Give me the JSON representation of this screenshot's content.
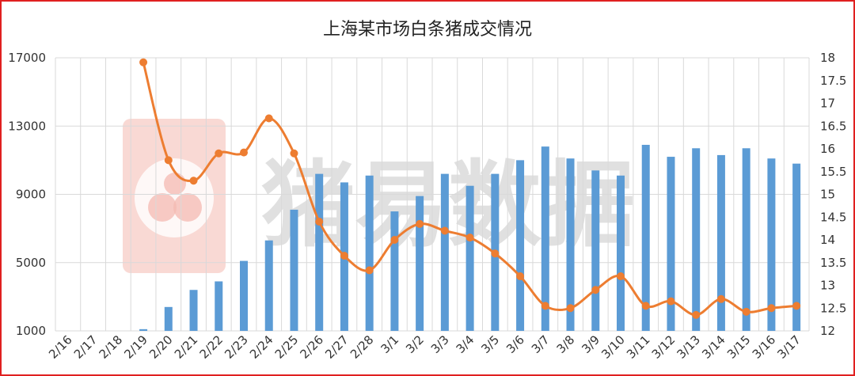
{
  "chart_data": {
    "type": "bar+line",
    "title": "上海某市场白条猪成交情况",
    "categories": [
      "2/16",
      "2/17",
      "2/18",
      "2/19",
      "2/20",
      "2/21",
      "2/22",
      "2/23",
      "2/24",
      "2/25",
      "2/26",
      "2/27",
      "2/28",
      "3/1",
      "3/2",
      "3/3",
      "3/4",
      "3/5",
      "3/6",
      "3/7",
      "3/8",
      "3/9",
      "3/10",
      "3/11",
      "3/12",
      "3/13",
      "3/14",
      "3/15",
      "3/16",
      "3/17"
    ],
    "left_axis": {
      "ticks": [
        1000,
        5000,
        9000,
        13000,
        17000
      ],
      "range": [
        1000,
        17000
      ]
    },
    "right_axis": {
      "ticks": [
        12,
        12.5,
        13,
        13.5,
        14,
        14.5,
        15,
        15.5,
        16,
        16.5,
        17,
        17.5,
        18
      ],
      "range": [
        12,
        18
      ]
    },
    "series": [
      {
        "axis": "left",
        "type": "bar",
        "color": "#5b9bd5",
        "values": [
          null,
          null,
          null,
          1100,
          2400,
          3400,
          3900,
          5100,
          6300,
          8100,
          10200,
          9700,
          10100,
          8000,
          8900,
          10200,
          9500,
          10200,
          11000,
          11800,
          11100,
          10400,
          10100,
          11900,
          11200,
          11700,
          11300,
          11700,
          11100,
          10800
        ]
      },
      {
        "axis": "right",
        "type": "line",
        "color": "#ed7d31",
        "values": [
          null,
          null,
          null,
          17.9,
          15.75,
          15.3,
          15.9,
          15.92,
          16.67,
          15.9,
          14.4,
          13.65,
          13.33,
          14.0,
          14.35,
          14.2,
          14.05,
          13.7,
          13.2,
          12.55,
          12.5,
          12.9,
          13.2,
          12.55,
          12.65,
          12.35,
          12.7,
          12.42,
          12.5,
          12.55
        ]
      }
    ],
    "grid": true,
    "legend": "none"
  },
  "watermark": {
    "text": "猪易数据",
    "logo_colors": {
      "outer": "#f4b9b1",
      "inner": "#ffffff"
    }
  },
  "colors": {
    "frame": "#e02020",
    "grid": "#d9d9d9",
    "bar": "#5b9bd5",
    "line": "#ed7d31"
  }
}
